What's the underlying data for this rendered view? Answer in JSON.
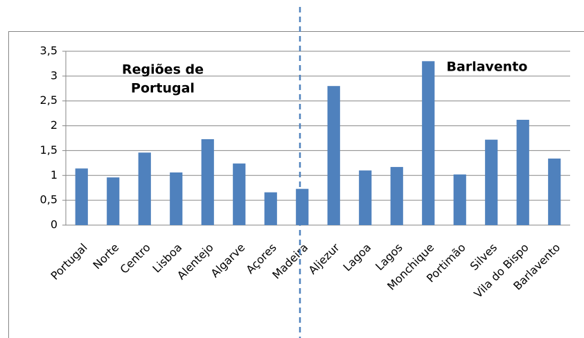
{
  "chart_data": {
    "type": "bar",
    "categories": [
      "Portugal",
      "Norte",
      "Centro",
      "Lisboa",
      "Alentejo",
      "Algarve",
      "Açores",
      "Madeira",
      "Aljezur",
      "Lagoa",
      "Lagos",
      "Monchique",
      "Portimão",
      "Silves",
      "Vila do Bispo",
      "Barlavento"
    ],
    "values": [
      1.14,
      0.96,
      1.46,
      1.06,
      1.73,
      1.24,
      0.66,
      0.73,
      2.8,
      1.1,
      1.17,
      3.3,
      1.02,
      1.72,
      2.12,
      1.34
    ],
    "color": "#4f81bd",
    "ylim": [
      0,
      3.5
    ],
    "yticks": [
      0,
      {
        "value": 0.5,
        "label": "0,5"
      },
      1,
      {
        "value": 1.5,
        "label": "1,5"
      },
      2,
      {
        "value": 2.5,
        "label": "2,5"
      },
      3,
      {
        "value": 3.5,
        "label": "3,5"
      }
    ],
    "grid": true,
    "annotations": [
      [
        "Regiões de",
        "Portugal"
      ],
      [
        "Barlavento"
      ]
    ]
  }
}
